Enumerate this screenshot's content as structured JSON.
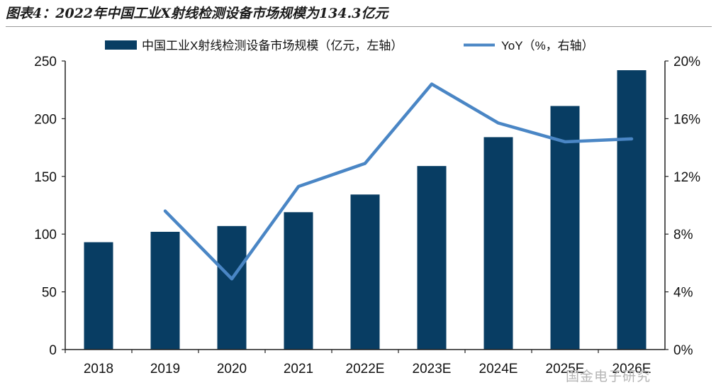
{
  "figure_title": "图表4：2022年中国工业X射线检测设备市场规模为134.3亿元",
  "watermark_text": "国金电子研究",
  "colors": {
    "bar": "#083d63",
    "line": "#4a86c5",
    "axis": "#222222"
  },
  "chart_data": {
    "type": "bar",
    "categories": [
      "2018",
      "2019",
      "2020",
      "2021",
      "2022E",
      "2023E",
      "2024E",
      "2025E",
      "2026E"
    ],
    "series": [
      {
        "name": "中国工业X射线检测设备市场规模（亿元，左轴）",
        "kind": "bar",
        "axis": "left",
        "values": [
          93,
          102,
          107,
          119,
          134.3,
          159,
          184,
          211,
          242
        ]
      },
      {
        "name": "YoY（%，右轴）",
        "kind": "line",
        "axis": "right",
        "values": [
          null,
          9.6,
          4.9,
          11.3,
          12.9,
          18.4,
          15.7,
          14.4,
          14.6
        ]
      }
    ],
    "left_axis": {
      "min": 0,
      "max": 250,
      "ticks": [
        "0",
        "50",
        "100",
        "150",
        "200",
        "250"
      ]
    },
    "right_axis": {
      "min": 0,
      "max": 20,
      "ticks": [
        "0%",
        "4%",
        "8%",
        "12%",
        "16%",
        "20%"
      ]
    },
    "legend_position": "top",
    "grid": false
  }
}
